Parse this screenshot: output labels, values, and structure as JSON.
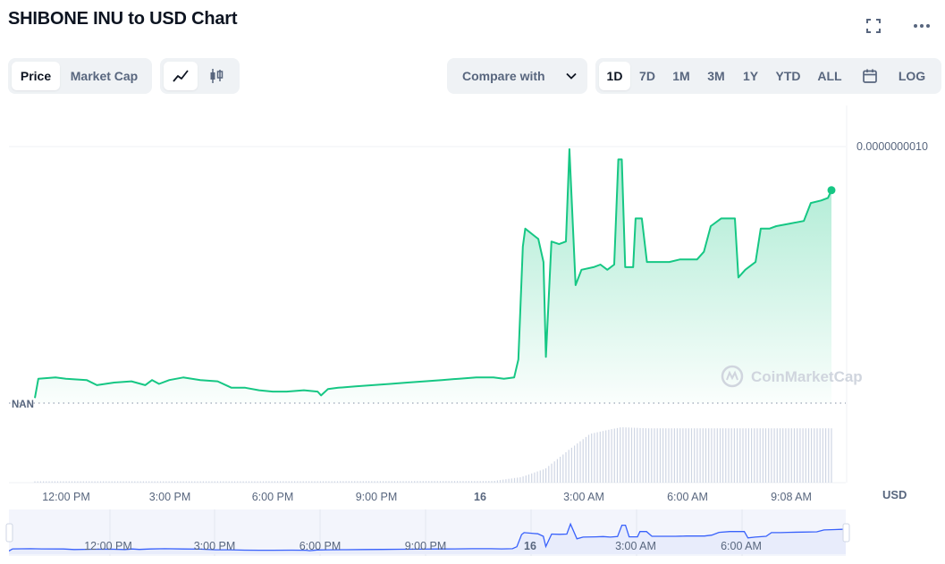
{
  "header": {
    "title": "SHIBONE INU to USD Chart",
    "fullscreen_icon": "expand-icon",
    "more_icon": "more-dots-icon"
  },
  "toolbar": {
    "metric_tabs": [
      {
        "label": "Price",
        "active": true
      },
      {
        "label": "Market Cap",
        "active": false
      }
    ],
    "chart_types": [
      {
        "icon": "line-chart-icon",
        "active": true
      },
      {
        "icon": "candlestick-icon",
        "active": false
      }
    ],
    "compare_label": "Compare with",
    "ranges": [
      {
        "label": "1D",
        "active": true
      },
      {
        "label": "7D",
        "active": false
      },
      {
        "label": "1M",
        "active": false
      },
      {
        "label": "3M",
        "active": false
      },
      {
        "label": "1Y",
        "active": false
      },
      {
        "label": "YTD",
        "active": false
      },
      {
        "label": "ALL",
        "active": false
      }
    ],
    "calendar_icon": "calendar-icon",
    "log_label": "LOG"
  },
  "watermark": "CoinMarketCap",
  "colors": {
    "line": "#16c784",
    "volume": "#cfd6e4",
    "navigator_line": "#3861fb",
    "navigator_fill": "#e8ecfb"
  },
  "chart_data": {
    "type": "area",
    "y_tick_labels": [
      "0.0000000010",
      "NAN"
    ],
    "y_axis_unit": "USD",
    "x_tick_labels": [
      "12:00 PM",
      "3:00 PM",
      "6:00 PM",
      "9:00 PM",
      "16",
      "3:00 AM",
      "6:00 AM",
      "9:08 AM"
    ],
    "navigator_tick_labels": [
      "12:00 PM",
      "3:00 PM",
      "6:00 PM",
      "9:00 PM",
      "16",
      "3:00 AM",
      "6:00 AM"
    ],
    "x_range_hours": [
      10.7,
      33.8
    ],
    "y_range": [
      0,
      1e-09
    ],
    "price_series": [
      [
        10.7,
        2e-11
      ],
      [
        10.8,
        9.5e-11
      ],
      [
        11.3,
        1e-10
      ],
      [
        11.6,
        9.5e-11
      ],
      [
        12.2,
        9e-11
      ],
      [
        12.5,
        7e-11
      ],
      [
        13.0,
        8e-11
      ],
      [
        13.5,
        8.5e-11
      ],
      [
        13.9,
        7e-11
      ],
      [
        14.1,
        9e-11
      ],
      [
        14.3,
        7.5e-11
      ],
      [
        14.6,
        9e-11
      ],
      [
        15.0,
        1e-10
      ],
      [
        15.5,
        9e-11
      ],
      [
        16.0,
        8.5e-11
      ],
      [
        16.4,
        6e-11
      ],
      [
        16.8,
        6e-11
      ],
      [
        17.2,
        5e-11
      ],
      [
        17.6,
        4.5e-11
      ],
      [
        18.0,
        4.5e-11
      ],
      [
        18.5,
        5e-11
      ],
      [
        18.9,
        4.5e-11
      ],
      [
        19.0,
        3e-11
      ],
      [
        19.2,
        5.5e-11
      ],
      [
        19.5,
        6e-11
      ],
      [
        20.0,
        6.5e-11
      ],
      [
        20.5,
        7e-11
      ],
      [
        21.0,
        7.5e-11
      ],
      [
        21.5,
        8e-11
      ],
      [
        22.0,
        8.5e-11
      ],
      [
        22.5,
        9e-11
      ],
      [
        23.0,
        9.5e-11
      ],
      [
        23.5,
        1e-10
      ],
      [
        24.0,
        1e-10
      ],
      [
        24.3,
        9.5e-11
      ],
      [
        24.6,
        1e-10
      ],
      [
        24.72,
        1.7e-10
      ],
      [
        24.85,
        6.1e-10
      ],
      [
        24.92,
        6.8e-10
      ],
      [
        25.2,
        6.5e-10
      ],
      [
        25.3,
        6.4e-10
      ],
      [
        25.45,
        5.5e-10
      ],
      [
        25.52,
        1.8e-10
      ],
      [
        25.68,
        6.3e-10
      ],
      [
        25.9,
        6.2e-10
      ],
      [
        26.1,
        6.3e-10
      ],
      [
        26.2,
        9.9e-10
      ],
      [
        26.38,
        4.6e-10
      ],
      [
        26.55,
        5.2e-10
      ],
      [
        26.9,
        5.3e-10
      ],
      [
        27.1,
        5.4e-10
      ],
      [
        27.3,
        5.2e-10
      ],
      [
        27.5,
        5.4e-10
      ],
      [
        27.62,
        9.5e-10
      ],
      [
        27.72,
        9.5e-10
      ],
      [
        27.82,
        5.3e-10
      ],
      [
        28.05,
        5.3e-10
      ],
      [
        28.12,
        7.2e-10
      ],
      [
        28.3,
        7.2e-10
      ],
      [
        28.45,
        5.5e-10
      ],
      [
        28.7,
        5.5e-10
      ],
      [
        29.1,
        5.5e-10
      ],
      [
        29.4,
        5.6e-10
      ],
      [
        29.9,
        5.6e-10
      ],
      [
        30.1,
        5.9e-10
      ],
      [
        30.3,
        6.9e-10
      ],
      [
        30.6,
        7.2e-10
      ],
      [
        31.0,
        7.2e-10
      ],
      [
        31.1,
        4.9e-10
      ],
      [
        31.3,
        5.2e-10
      ],
      [
        31.6,
        5.5e-10
      ],
      [
        31.75,
        6.8e-10
      ],
      [
        32.0,
        6.8e-10
      ],
      [
        32.2,
        6.9e-10
      ],
      [
        32.6,
        7e-10
      ],
      [
        33.0,
        7.1e-10
      ],
      [
        33.2,
        7.8e-10
      ],
      [
        33.5,
        7.9e-10
      ],
      [
        33.7,
        8e-10
      ],
      [
        33.8,
        8.3e-10
      ]
    ],
    "volume_profile": [
      [
        10.7,
        0.02
      ],
      [
        24.0,
        0.03
      ],
      [
        24.8,
        0.1
      ],
      [
        25.5,
        0.25
      ],
      [
        26.2,
        0.6
      ],
      [
        26.8,
        0.88
      ],
      [
        27.3,
        0.95
      ],
      [
        27.7,
        1.0
      ],
      [
        28.5,
        0.98
      ],
      [
        30.0,
        0.98
      ],
      [
        33.8,
        0.98
      ]
    ],
    "grid": false
  }
}
